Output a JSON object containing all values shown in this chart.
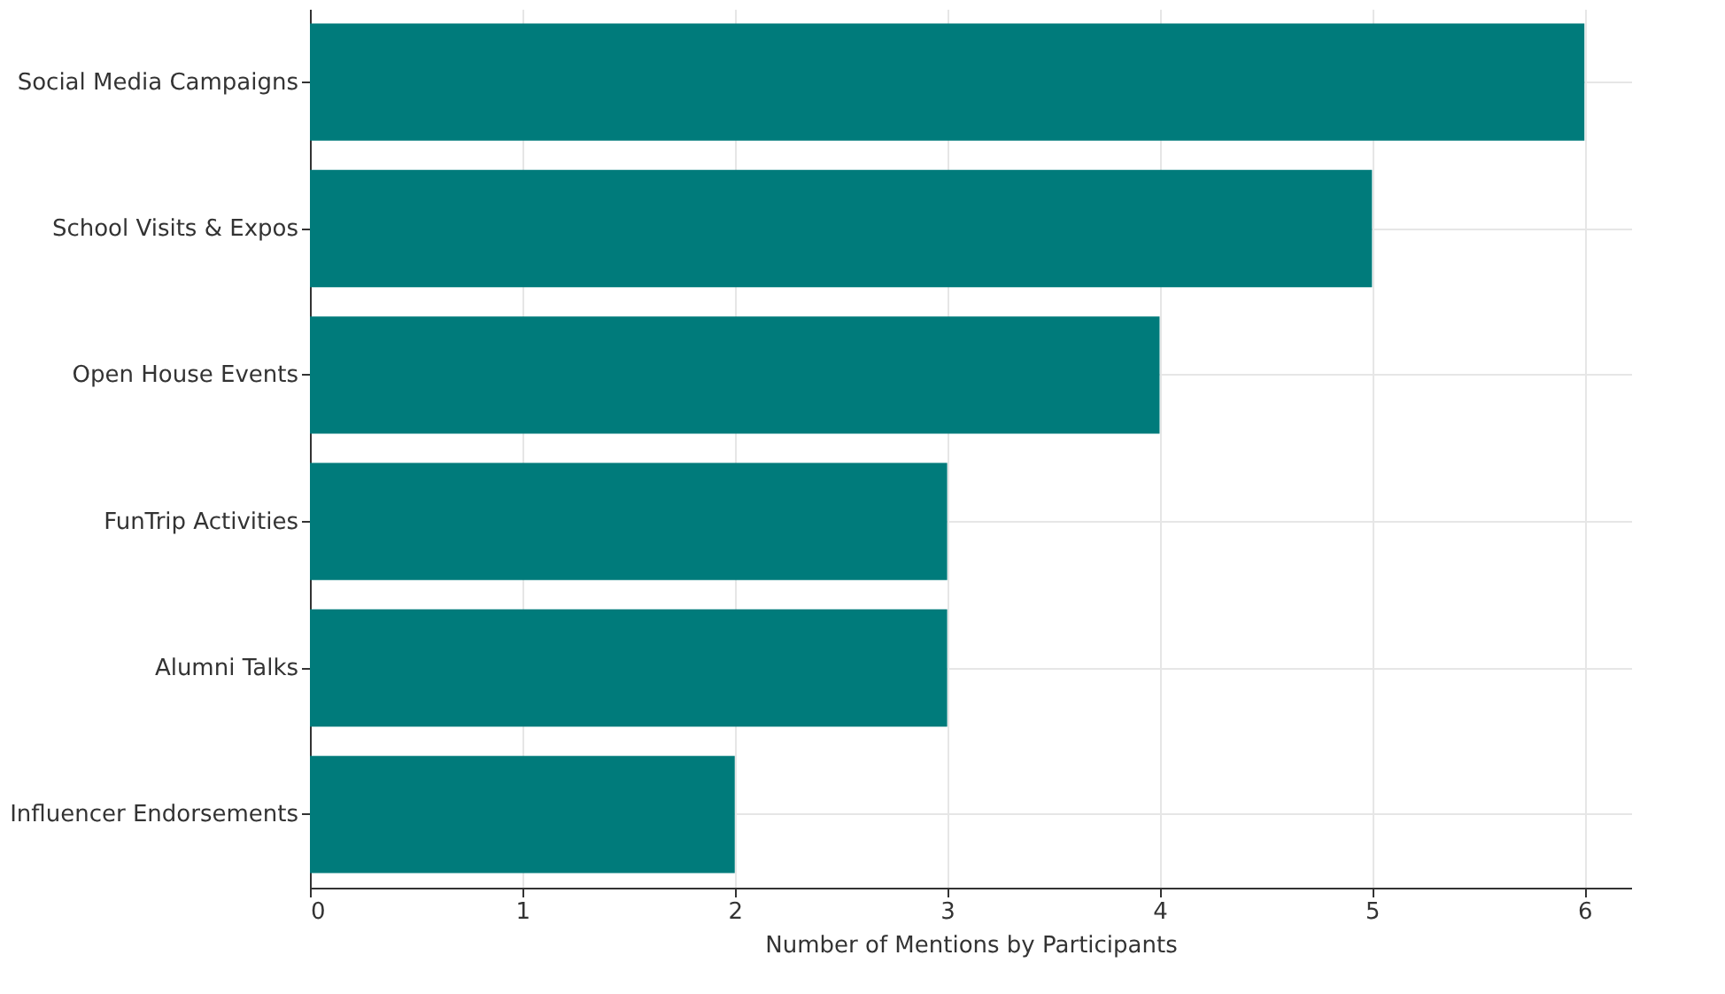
{
  "chart_data": {
    "type": "bar",
    "orientation": "horizontal",
    "xlabel": "Number of Mentions by Participants",
    "categories": [
      "Social Media Campaigns",
      "School Visits & Expos",
      "Open House Events",
      "FunTrip Activities",
      "Alumni Talks",
      "Influencer Endorsements"
    ],
    "values": [
      6,
      5,
      4,
      3,
      3,
      2
    ],
    "color": "#007b7b",
    "xlim": [
      0,
      6.22
    ],
    "xticks": [
      0,
      1,
      2,
      3,
      4,
      5,
      6
    ],
    "grid": true
  }
}
